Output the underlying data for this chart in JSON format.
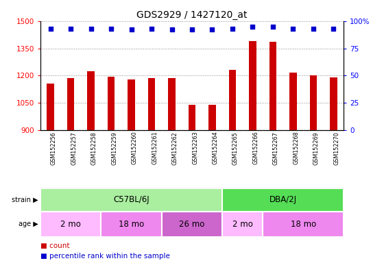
{
  "title": "GDS2929 / 1427120_at",
  "samples": [
    "GSM152256",
    "GSM152257",
    "GSM152258",
    "GSM152259",
    "GSM152260",
    "GSM152261",
    "GSM152262",
    "GSM152263",
    "GSM152264",
    "GSM152265",
    "GSM152266",
    "GSM152267",
    "GSM152268",
    "GSM152269",
    "GSM152270"
  ],
  "counts": [
    1155,
    1185,
    1225,
    1195,
    1180,
    1185,
    1185,
    1040,
    1040,
    1230,
    1390,
    1385,
    1215,
    1200,
    1190
  ],
  "percentile_ranks": [
    93,
    93,
    93,
    93,
    92,
    93,
    92,
    92,
    92,
    93,
    95,
    95,
    93,
    93,
    93
  ],
  "ylim_left": [
    900,
    1500
  ],
  "ylim_right": [
    0,
    100
  ],
  "yticks_left": [
    900,
    1050,
    1200,
    1350,
    1500
  ],
  "yticks_right": [
    0,
    25,
    50,
    75,
    100
  ],
  "bar_color": "#cc0000",
  "dot_color": "#0000cc",
  "strain_groups": [
    {
      "label": "C57BL/6J",
      "start": 0,
      "end": 9,
      "color": "#aaeea0"
    },
    {
      "label": "DBA/2J",
      "start": 9,
      "end": 15,
      "color": "#55dd55"
    }
  ],
  "age_groups": [
    {
      "label": "2 mo",
      "start": 0,
      "end": 3,
      "color": "#ffbbff"
    },
    {
      "label": "18 mo",
      "start": 3,
      "end": 6,
      "color": "#ee88ee"
    },
    {
      "label": "26 mo",
      "start": 6,
      "end": 9,
      "color": "#cc66cc"
    },
    {
      "label": "2 mo",
      "start": 9,
      "end": 11,
      "color": "#ffbbff"
    },
    {
      "label": "18 mo",
      "start": 11,
      "end": 15,
      "color": "#ee88ee"
    }
  ],
  "bg_color": "#ffffff",
  "grid_color": "#888888",
  "tick_area_bg": "#cccccc",
  "chart_bg": "#ffffff"
}
